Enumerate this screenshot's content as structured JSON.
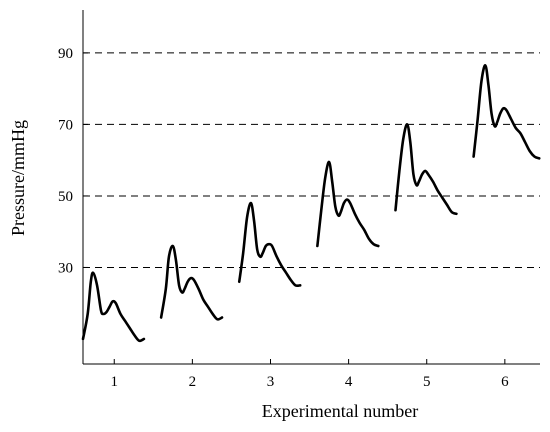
{
  "chart_data": {
    "type": "line",
    "xlabel": "Experimental number",
    "ylabel": "Pressure/mmHg",
    "x_ticks": [
      1,
      2,
      3,
      4,
      5,
      6
    ],
    "y_ticks": [
      30,
      50,
      70,
      90
    ],
    "xlim": [
      0.6,
      6.45
    ],
    "ylim": [
      3,
      102
    ],
    "grid": "horizontal dashed at y ticks",
    "series": [
      {
        "x": [
          0.6,
          0.66,
          0.7,
          0.73,
          0.78,
          0.83,
          0.86,
          0.9,
          0.94,
          0.98,
          1.02,
          1.08,
          1.14,
          1.2,
          1.26,
          1.32,
          1.38
        ],
        "y": [
          10,
          17,
          26,
          28.5,
          25,
          18,
          17,
          17.5,
          19,
          20.5,
          20,
          17,
          15,
          13,
          11,
          9.5,
          10
        ]
      },
      {
        "x": [
          1.6,
          1.66,
          1.7,
          1.75,
          1.79,
          1.83,
          1.87,
          1.9,
          1.94,
          1.98,
          2.02,
          2.08,
          2.14,
          2.2,
          2.26,
          2.32,
          2.38
        ],
        "y": [
          16,
          24,
          33,
          36,
          32,
          25,
          23,
          24,
          26,
          27,
          26.5,
          24,
          21,
          19,
          17,
          15.5,
          16
        ]
      },
      {
        "x": [
          2.6,
          2.65,
          2.7,
          2.75,
          2.79,
          2.83,
          2.87,
          2.9,
          2.94,
          2.98,
          3.02,
          3.08,
          3.14,
          3.2,
          3.26,
          3.32,
          3.38
        ],
        "y": [
          26,
          34,
          44,
          48,
          43,
          35,
          33,
          34,
          36,
          36.5,
          36,
          33,
          30.5,
          28.5,
          26.5,
          25,
          25
        ]
      },
      {
        "x": [
          3.6,
          3.65,
          3.7,
          3.75,
          3.79,
          3.83,
          3.87,
          3.9,
          3.94,
          3.98,
          4.02,
          4.08,
          4.14,
          4.2,
          4.26,
          4.32,
          4.38
        ],
        "y": [
          36,
          46,
          55,
          59.5,
          54,
          47,
          44.5,
          45.5,
          48,
          49,
          48,
          45,
          42.5,
          40.5,
          38,
          36.5,
          36
        ]
      },
      {
        "x": [
          4.6,
          4.65,
          4.7,
          4.75,
          4.79,
          4.83,
          4.87,
          4.9,
          4.94,
          4.98,
          5.02,
          5.08,
          5.14,
          5.2,
          5.26,
          5.32,
          5.38
        ],
        "y": [
          46,
          57,
          66,
          70,
          65,
          56,
          53,
          54,
          56,
          57,
          56,
          54,
          51.5,
          49.5,
          47.5,
          45.5,
          45
        ]
      },
      {
        "x": [
          5.6,
          5.65,
          5.7,
          5.75,
          5.79,
          5.83,
          5.87,
          5.9,
          5.94,
          5.98,
          6.02,
          6.08,
          6.14,
          6.2,
          6.26,
          6.32,
          6.38,
          6.44
        ],
        "y": [
          61,
          71,
          82,
          86.5,
          81,
          73,
          69.5,
          70.5,
          73,
          74.5,
          74,
          71.5,
          69,
          67.5,
          65,
          62.5,
          61,
          60.5
        ]
      }
    ]
  }
}
